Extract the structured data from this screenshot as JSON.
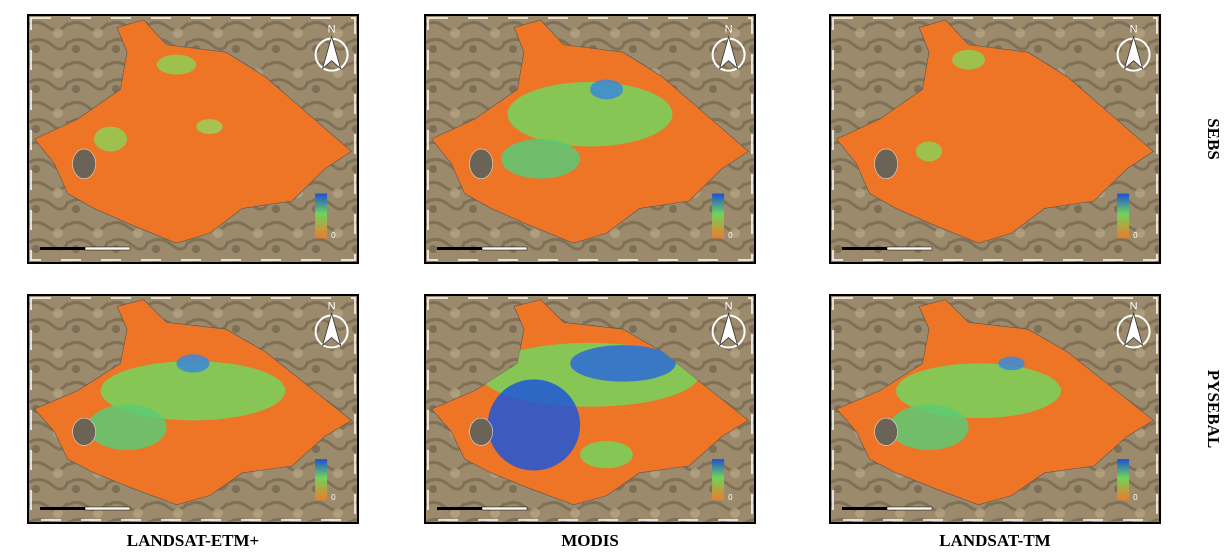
{
  "columns": [
    "LANDSAT-ETM+",
    "MODIS",
    "LANDSAT-TM"
  ],
  "rows": [
    "SEBS",
    "PYSEBAL"
  ],
  "map": {
    "north": "N",
    "legend_min": "0"
  }
}
